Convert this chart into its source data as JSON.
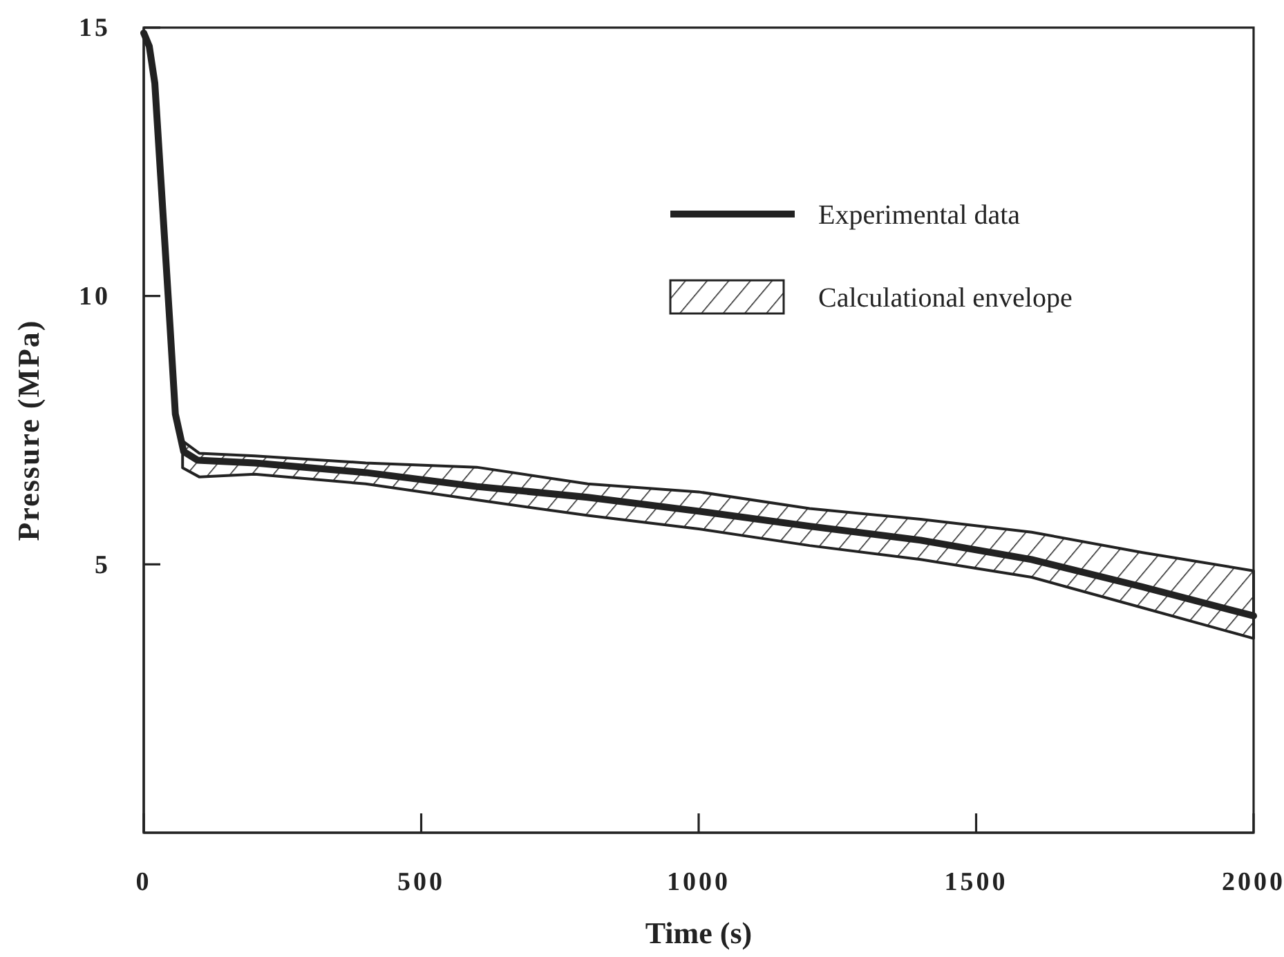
{
  "chart_data": {
    "type": "line",
    "xlabel": "Time (s)",
    "ylabel": "Pressure (MPa)",
    "xlim": [
      0,
      2000
    ],
    "xticks": [
      0,
      500,
      1000,
      1500,
      2000
    ],
    "ylim": [
      0,
      15
    ],
    "yticks": [
      5,
      10,
      15
    ],
    "grid": false,
    "legend": "top right",
    "series": [
      {
        "name": "Calculational envelope",
        "type": "area",
        "color": "#222222",
        "x": [
          70,
          100,
          200,
          400,
          600,
          800,
          1000,
          1200,
          1400,
          1600,
          1800,
          2000
        ],
        "values": [
          null,
          null,
          null,
          null,
          null,
          null,
          null,
          null,
          null,
          null,
          null,
          null
        ],
        "upper": [
          7.3,
          7.07,
          7.02,
          6.89,
          6.81,
          6.5,
          6.35,
          6.04,
          5.84,
          5.6,
          5.22,
          4.88
        ],
        "lower": [
          6.8,
          6.63,
          6.68,
          6.5,
          6.2,
          5.91,
          5.66,
          5.35,
          5.09,
          4.76,
          4.19,
          3.62
        ]
      },
      {
        "name": "Experimental data",
        "type": "line",
        "color": "#222222",
        "x": [
          0,
          10,
          20,
          47,
          57,
          72,
          97,
          200,
          400,
          600,
          800,
          1000,
          1200,
          1400,
          1600,
          1800,
          2000
        ],
        "values": [
          14.9,
          14.65,
          13.96,
          9.5,
          7.8,
          7.1,
          6.94,
          6.89,
          6.71,
          6.45,
          6.25,
          5.99,
          5.71,
          5.45,
          5.09,
          4.58,
          4.04
        ]
      }
    ]
  }
}
